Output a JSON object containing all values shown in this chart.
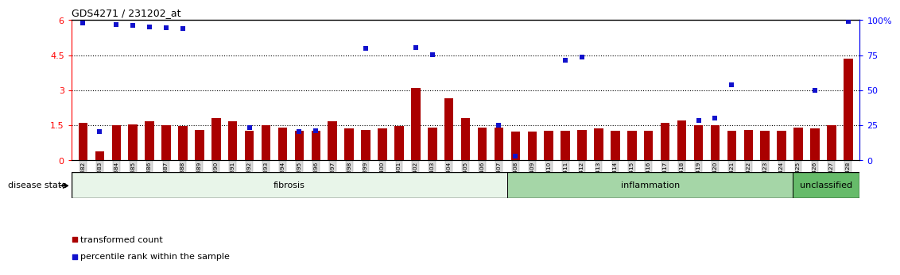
{
  "title": "GDS4271 / 231202_at",
  "samples": [
    "GSM380382",
    "GSM380383",
    "GSM380384",
    "GSM380385",
    "GSM380386",
    "GSM380387",
    "GSM380388",
    "GSM380389",
    "GSM380390",
    "GSM380391",
    "GSM380392",
    "GSM380393",
    "GSM380394",
    "GSM380395",
    "GSM380396",
    "GSM380397",
    "GSM380398",
    "GSM380399",
    "GSM380400",
    "GSM380401",
    "GSM380402",
    "GSM380403",
    "GSM380404",
    "GSM380405",
    "GSM380406",
    "GSM380407",
    "GSM380408",
    "GSM380409",
    "GSM380410",
    "GSM380411",
    "GSM380412",
    "GSM380413",
    "GSM380414",
    "GSM380415",
    "GSM380416",
    "GSM380417",
    "GSM380418",
    "GSM380419",
    "GSM380420",
    "GSM380421",
    "GSM380422",
    "GSM380423",
    "GSM380424",
    "GSM380425",
    "GSM380426",
    "GSM380427",
    "GSM380428"
  ],
  "bar_values": [
    1.62,
    0.38,
    1.52,
    1.55,
    1.68,
    1.52,
    1.48,
    1.3,
    1.82,
    1.68,
    1.28,
    1.52,
    1.42,
    1.28,
    1.28,
    1.68,
    1.38,
    1.32,
    1.38,
    1.48,
    3.1,
    1.42,
    2.65,
    1.82,
    1.42,
    1.42,
    1.22,
    1.22,
    1.28,
    1.28,
    1.32,
    1.38,
    1.28,
    1.28,
    1.28,
    1.62,
    1.72,
    1.52,
    1.52,
    1.28,
    1.32,
    1.28,
    1.28,
    1.42,
    1.38,
    1.52,
    4.35
  ],
  "dot_values": [
    5.88,
    1.22,
    5.82,
    5.78,
    5.72,
    5.68,
    5.65,
    null,
    null,
    null,
    1.42,
    null,
    null,
    1.22,
    1.28,
    null,
    null,
    4.78,
    null,
    null,
    4.82,
    4.52,
    null,
    null,
    null,
    1.52,
    0.18,
    null,
    null,
    4.28,
    4.42,
    null,
    null,
    null,
    null,
    null,
    null,
    1.72,
    1.82,
    3.25,
    null,
    null,
    null,
    null,
    3.0,
    null,
    5.95
  ],
  "groups": [
    {
      "label": "fibrosis",
      "start": 0,
      "end": 26,
      "color": "#e8f5e9"
    },
    {
      "label": "inflammation",
      "start": 26,
      "end": 43,
      "color": "#a5d6a7"
    },
    {
      "label": "unclassified",
      "start": 43,
      "end": 47,
      "color": "#66bb6a"
    }
  ],
  "ylim_left": [
    0,
    6
  ],
  "ylim_right": [
    0,
    100
  ],
  "yticks_left": [
    0,
    1.5,
    3.0,
    4.5,
    6.0
  ],
  "yticks_right": [
    0,
    25,
    50,
    75,
    100
  ],
  "ytick_labels_left": [
    "0",
    "1.5",
    "3",
    "4.5",
    "6"
  ],
  "ytick_labels_right": [
    "0",
    "25",
    "50",
    "75",
    "100%"
  ],
  "hlines": [
    1.5,
    3.0,
    4.5
  ],
  "bar_color": "#aa0000",
  "dot_color": "#1111cc",
  "bar_width": 0.55,
  "legend_items": [
    {
      "color": "#aa0000",
      "label": "transformed count"
    },
    {
      "color": "#1111cc",
      "label": "percentile rank within the sample"
    }
  ]
}
